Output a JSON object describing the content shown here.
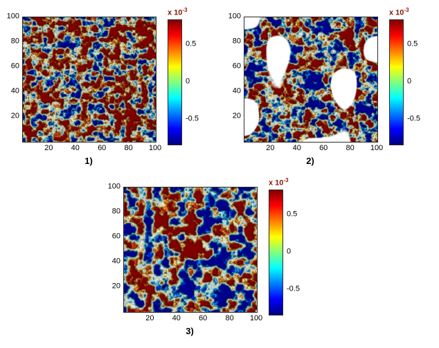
{
  "figure": {
    "background": "#ffffff",
    "axis_range": [
      0,
      100
    ],
    "colors": {
      "jet_colorbar_stops": [
        "#000080",
        "#0000ff",
        "#00ffff",
        "#ffff00",
        "#ff0000",
        "#800000"
      ],
      "scale_label_color": "#8b1500",
      "axis_text_color": "#000000"
    },
    "panels": [
      {
        "label": "1)",
        "x_ticks": [
          "20",
          "40",
          "60",
          "80",
          "100"
        ],
        "y_ticks": [
          "100",
          "80",
          "60",
          "40",
          "20"
        ],
        "colorbar": {
          "scale_mantissa": "x 10",
          "scale_exponent": "-3",
          "ticks": [
            "0.5",
            "0",
            "-0.5"
          ],
          "range": [
            -0.83,
            0.83
          ]
        }
      },
      {
        "label": "2)",
        "x_ticks": [
          "20",
          "40",
          "60",
          "80",
          "100"
        ],
        "y_ticks": [
          "100",
          "80",
          "60",
          "40",
          "20"
        ],
        "colorbar": {
          "scale_mantissa": "x 10",
          "scale_exponent": "-3",
          "ticks": [
            "0.5",
            "0",
            "-0.5"
          ],
          "range": [
            -0.83,
            0.83
          ]
        }
      },
      {
        "label": "3)",
        "x_ticks": [
          "20",
          "40",
          "60",
          "80",
          "100"
        ],
        "y_ticks": [
          "100",
          "80",
          "60",
          "40",
          "20"
        ],
        "colorbar": {
          "scale_mantissa": "x 10",
          "scale_exponent": "-3",
          "ticks": [
            "0.5",
            "0",
            "-0.5"
          ],
          "range": [
            -0.83,
            0.83
          ]
        }
      }
    ]
  },
  "chart_data": [
    {
      "type": "heatmap",
      "subplot_label": "1)",
      "title": "",
      "xlabel": "",
      "ylabel": "",
      "xlim": [
        0,
        100
      ],
      "ylim": [
        0,
        100
      ],
      "x_ticks": [
        20,
        40,
        60,
        80,
        100
      ],
      "y_ticks": [
        20,
        40,
        60,
        80,
        100
      ],
      "colormap": "jet",
      "colorbar_scale": "x 10^-3",
      "colorbar_tick_values": [
        0.5,
        0,
        -0.5
      ],
      "colorbar_range_est": [
        -0.00083,
        0.00083
      ],
      "pattern_summary": "dense fine-scale random contour field, predominantly positive values drawn as red/orange ring-like contours on a pale background",
      "field": {
        "seed": 7,
        "cell": 8,
        "octaves": 3,
        "gain": 2.6,
        "bias": 0.25,
        "band_step": 0.2,
        "white_mask": null
      }
    },
    {
      "type": "heatmap",
      "subplot_label": "2)",
      "title": "",
      "xlabel": "",
      "ylabel": "",
      "xlim": [
        0,
        100
      ],
      "ylim": [
        0,
        100
      ],
      "x_ticks": [
        20,
        40,
        60,
        80,
        100
      ],
      "y_ticks": [
        20,
        40,
        60,
        80,
        100
      ],
      "colormap": "jet",
      "colorbar_scale": "x 10^-3",
      "colorbar_tick_values": [
        0.5,
        0,
        -0.5
      ],
      "colorbar_range_est": [
        -0.00083,
        0.00083
      ],
      "pattern_summary": "mixed red and blue contour blobs with a large irregular white branching (no-data) region through the middle-left",
      "field": {
        "seed": 42,
        "cell": 9,
        "octaves": 3,
        "gain": 2.8,
        "bias": 0.06,
        "band_step": 0.2,
        "white_mask": {
          "cell": 48,
          "threshold": 0.38
        }
      }
    },
    {
      "type": "heatmap",
      "subplot_label": "3)",
      "title": "",
      "xlabel": "",
      "ylabel": "",
      "xlim": [
        0,
        100
      ],
      "ylim": [
        0,
        100
      ],
      "x_ticks": [
        20,
        40,
        60,
        80,
        100
      ],
      "y_ticks": [
        20,
        40,
        60,
        80,
        100
      ],
      "colormap": "jet",
      "colorbar_scale": "x 10^-3",
      "colorbar_tick_values": [
        0.5,
        0,
        -0.5
      ],
      "colorbar_range_est": [
        -0.00083,
        0.00083
      ],
      "pattern_summary": "coarser, balanced field of red (positive) and blue (negative) contour blobs on a pale cyan-tinted background",
      "field": {
        "seed": 99,
        "cell": 12,
        "octaves": 3,
        "gain": 2.9,
        "bias": 0.0,
        "band_step": 0.2,
        "white_mask": null
      }
    }
  ]
}
